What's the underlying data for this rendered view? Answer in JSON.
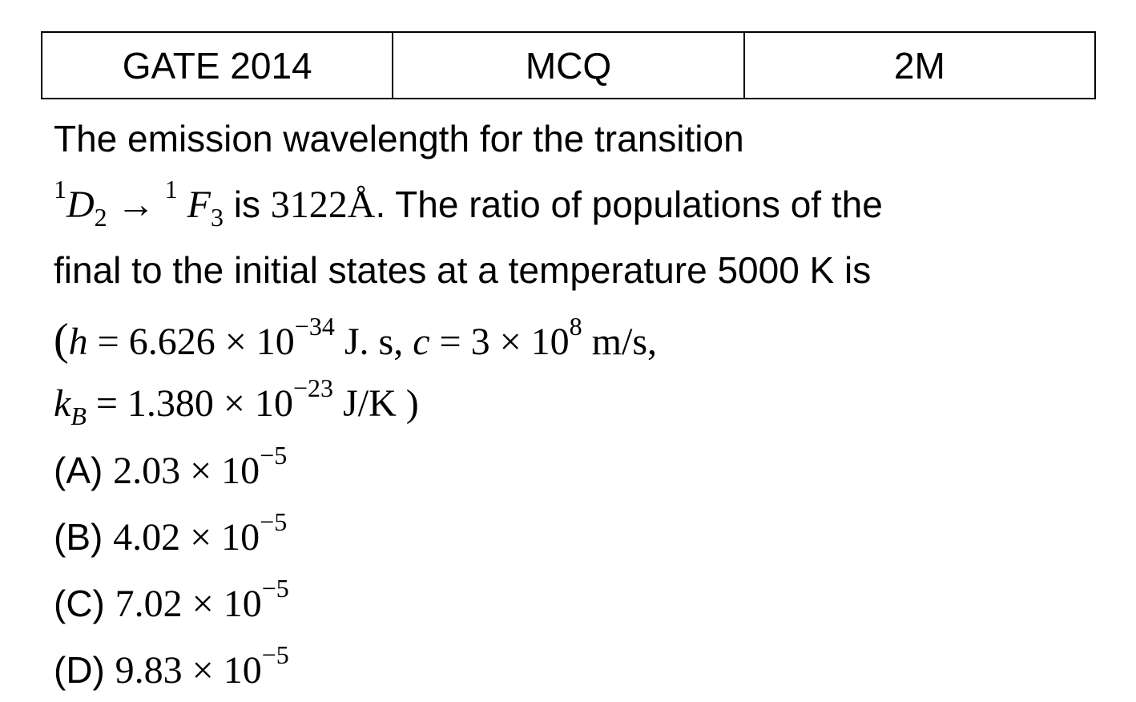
{
  "header": {
    "cells": [
      "GATE 2014",
      "MCQ",
      "2M"
    ]
  },
  "question": {
    "lines": [
      [
        "The emission wavelength for the transition"
      ],
      [
        "1",
        "D",
        "2",
        " → ",
        "1",
        " F",
        "3",
        " is ",
        "3122Å",
        ". The ratio of populations of the"
      ],
      [
        "final to the initial states at a temperature 5000 K is"
      ],
      [
        "(",
        "h",
        " = 6.626 × 10",
        "−34",
        " J. s, ",
        "c",
        " = 3 × 10",
        "8",
        " m/s,"
      ],
      [
        "k",
        "B",
        " = 1.380 × 10",
        "−23",
        " J/K )"
      ]
    ]
  },
  "options": [
    {
      "label": "(A) ",
      "mantissa": "2.03 × 10",
      "exponent": "−5"
    },
    {
      "label": "(B) ",
      "mantissa": "4.02 × 10",
      "exponent": "−5"
    },
    {
      "label": "(C) ",
      "mantissa": "7.02 × 10",
      "exponent": "−5"
    },
    {
      "label": "(D) ",
      "mantissa": "9.83 × 10",
      "exponent": "−5"
    }
  ]
}
